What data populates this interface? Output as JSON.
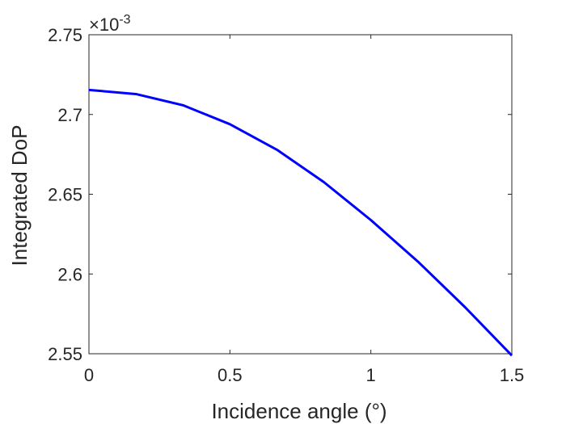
{
  "chart_data": {
    "type": "line",
    "title": "",
    "xlabel": "Incidence angle (°)",
    "ylabel": "Integrated DoP",
    "xlim": [
      0,
      1.5
    ],
    "ylim": [
      2.55,
      2.75
    ],
    "y_scale_exponent": {
      "base": "×10",
      "power": "-3"
    },
    "x_ticks": [
      "0",
      "0.5",
      "1",
      "1.5"
    ],
    "x_tick_values": [
      0,
      0.5,
      1,
      1.5
    ],
    "y_ticks": [
      "2.55",
      "2.6",
      "2.65",
      "2.7",
      "2.75"
    ],
    "y_tick_values": [
      2.55,
      2.6,
      2.65,
      2.7,
      2.75
    ],
    "grid": false,
    "series": [
      {
        "color": "#0000ff",
        "x": [
          0,
          0.1667,
          0.3333,
          0.5,
          0.6667,
          0.8333,
          1.0,
          1.1667,
          1.3333,
          1.5
        ],
        "y": [
          2.7154,
          2.7128,
          2.7058,
          2.6939,
          2.6779,
          2.6576,
          2.6338,
          2.6078,
          2.5793,
          2.5489
        ]
      }
    ]
  }
}
